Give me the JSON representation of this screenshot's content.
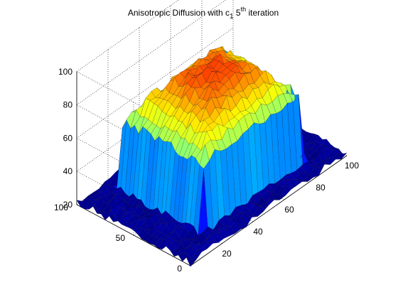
{
  "figure": {
    "title_main": "Anisotropic Diffusion with c",
    "title_sub": "1",
    "title_num": " 5",
    "title_sup": "th",
    "title_end": " iteration"
  },
  "chart_data": {
    "type": "surface",
    "title": "Anisotropic Diffusion with c1 5th iteration",
    "xlabel": "",
    "ylabel": "",
    "zlabel": "",
    "xlim": [
      0,
      100
    ],
    "ylim": [
      0,
      100
    ],
    "zlim": [
      20,
      100
    ],
    "x_ticks": [
      "20",
      "40",
      "60",
      "80",
      "100"
    ],
    "y_ticks": [
      "0",
      "50",
      "100"
    ],
    "z_ticks": [
      "20",
      "40",
      "60",
      "80",
      "100"
    ],
    "grid": true,
    "colormap": "jet",
    "description_values": {
      "background_level": 22,
      "block_region_x": [
        20,
        85
      ],
      "block_region_y": [
        15,
        90
      ],
      "plateau_edge_level": 58,
      "peak_level": 85
    }
  }
}
